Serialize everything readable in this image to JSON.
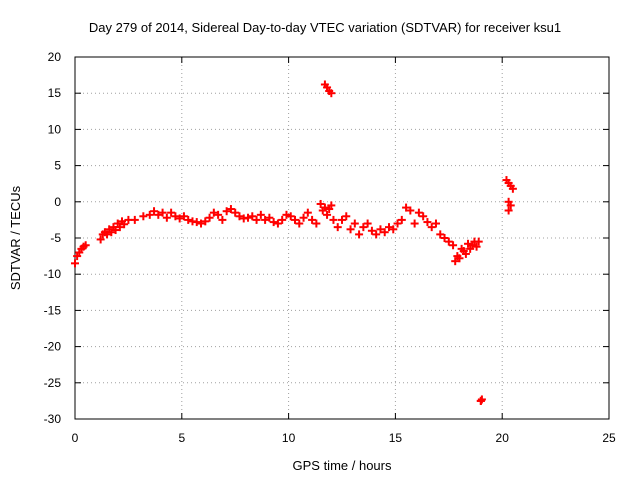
{
  "chart_data": {
    "type": "scatter",
    "title": "Day 279 of 2014, Sidereal Day-to-day VTEC variation (SDTVAR) for receiver ksu1",
    "xlabel": "GPS time / hours",
    "ylabel": "SDTVAR / TECUs",
    "xlim": [
      0,
      25
    ],
    "ylim": [
      -30,
      20
    ],
    "xticks": [
      0,
      5,
      10,
      15,
      20,
      25
    ],
    "yticks": [
      20,
      15,
      10,
      5,
      0,
      -5,
      -10,
      -15,
      -20,
      -25,
      -30
    ],
    "grid": true,
    "marker": "plus",
    "color": "#ff0000",
    "series": [
      {
        "name": "SDTVAR",
        "x": [
          0.0,
          0.1,
          0.2,
          0.3,
          0.4,
          0.5,
          1.2,
          1.3,
          1.4,
          1.5,
          1.6,
          1.7,
          1.8,
          1.9,
          2.0,
          2.1,
          2.2,
          2.3,
          2.5,
          2.8,
          3.2,
          3.5,
          3.7,
          3.9,
          4.1,
          4.3,
          4.5,
          4.7,
          4.9,
          5.1,
          5.3,
          5.5,
          5.7,
          5.9,
          6.1,
          6.3,
          6.5,
          6.7,
          6.9,
          7.1,
          7.3,
          7.5,
          7.7,
          7.9,
          8.1,
          8.3,
          8.5,
          8.7,
          8.9,
          9.1,
          9.3,
          9.5,
          9.7,
          9.9,
          10.1,
          10.3,
          10.5,
          10.7,
          10.9,
          11.1,
          11.3,
          11.5,
          11.6,
          11.7,
          11.8,
          11.9,
          12.0,
          12.1,
          12.3,
          12.5,
          12.7,
          12.9,
          13.1,
          13.3,
          13.5,
          13.7,
          13.9,
          14.1,
          14.3,
          14.5,
          14.7,
          14.9,
          15.1,
          15.3,
          15.5,
          15.7,
          15.9,
          16.1,
          16.3,
          16.5,
          16.7,
          16.9,
          17.1,
          17.3,
          17.5,
          17.7,
          17.8,
          17.9,
          18.0,
          18.1,
          18.2,
          18.3,
          18.4,
          18.5,
          18.6,
          18.7,
          18.8,
          18.9,
          19.0,
          11.7,
          11.8,
          11.9,
          12.0,
          20.2,
          20.3,
          20.4,
          20.5,
          20.3,
          20.4,
          20.3,
          19.0,
          19.05
        ],
        "y": [
          -8.5,
          -7.5,
          -7.0,
          -6.5,
          -6.2,
          -6.0,
          -5.2,
          -4.5,
          -4.2,
          -4.5,
          -3.8,
          -4.2,
          -3.5,
          -3.9,
          -3.0,
          -3.5,
          -2.7,
          -3.1,
          -2.5,
          -2.5,
          -2.0,
          -1.8,
          -1.3,
          -1.8,
          -1.5,
          -2.2,
          -1.5,
          -2.0,
          -2.3,
          -2.0,
          -2.5,
          -2.7,
          -2.8,
          -3.0,
          -2.7,
          -2.2,
          -1.5,
          -1.8,
          -2.5,
          -1.3,
          -1.0,
          -1.5,
          -2.0,
          -2.3,
          -2.2,
          -2.0,
          -2.5,
          -1.8,
          -2.5,
          -2.2,
          -2.8,
          -3.0,
          -2.5,
          -1.8,
          -2.0,
          -2.5,
          -3.0,
          -2.2,
          -1.5,
          -2.5,
          -3.0,
          -0.3,
          -1.2,
          -0.8,
          -1.8,
          -1.0,
          -0.5,
          -2.5,
          -3.5,
          -2.5,
          -2.0,
          -3.8,
          -3.0,
          -4.5,
          -3.5,
          -3.0,
          -4.0,
          -4.5,
          -3.8,
          -4.2,
          -3.5,
          -3.8,
          -3.0,
          -2.5,
          -0.8,
          -1.2,
          -3.0,
          -1.5,
          -2.0,
          -2.8,
          -3.5,
          -3.0,
          -4.5,
          -5.0,
          -5.5,
          -6.0,
          -8.2,
          -7.5,
          -7.8,
          -6.5,
          -6.8,
          -7.2,
          -5.8,
          -6.5,
          -6.0,
          -5.5,
          -6.2,
          -5.5,
          -27.5,
          16.2,
          15.8,
          15.3,
          15.0,
          3.0,
          2.6,
          2.2,
          1.8,
          0.0,
          -0.5,
          -1.2,
          -27.5,
          -27.3
        ]
      }
    ]
  }
}
